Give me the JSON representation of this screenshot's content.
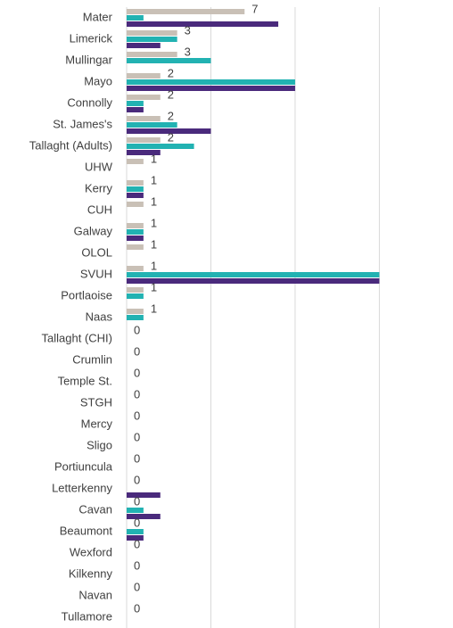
{
  "chart_data": {
    "type": "bar",
    "orientation": "horizontal",
    "categories": [
      "Mater",
      "Limerick",
      "Mullingar",
      "Mayo",
      "Connolly",
      "St. James's",
      "Tallaght (Adults)",
      "UHW",
      "Kerry",
      "CUH",
      "Galway",
      "OLOL",
      "SVUH",
      "Portlaoise",
      "Naas",
      "Tallaght (CHI)",
      "Crumlin",
      "Temple St.",
      "STGH",
      "Mercy",
      "Sligo",
      "Portiuncula",
      "Letterkenny",
      "Cavan",
      "Beaumont",
      "Wexford",
      "Kilkenny",
      "Navan",
      "Tullamore"
    ],
    "series": [
      {
        "color": "#c9c0b6",
        "show_labels": true,
        "values": [
          7,
          3,
          3,
          2,
          2,
          2,
          2,
          1,
          1,
          1,
          1,
          1,
          1,
          1,
          1,
          0,
          0,
          0,
          0,
          0,
          0,
          0,
          0,
          0,
          0,
          0,
          0,
          0,
          0
        ]
      },
      {
        "color": "#22b2b2",
        "show_labels": false,
        "values": [
          1,
          3,
          5,
          10,
          1,
          3,
          4,
          0,
          1,
          0,
          1,
          0,
          15,
          1,
          1,
          0,
          0,
          0,
          0,
          0,
          0,
          0,
          0,
          1,
          1,
          0,
          0,
          0,
          0
        ]
      },
      {
        "color": "#4a2a7c",
        "show_labels": false,
        "values": [
          9,
          2,
          0,
          10,
          1,
          5,
          2,
          0,
          1,
          0,
          1,
          0,
          15,
          0,
          0,
          0,
          0,
          0,
          0,
          0,
          0,
          0,
          2,
          2,
          1,
          0,
          0,
          0,
          0
        ]
      }
    ],
    "xlim": [
      0,
      19
    ],
    "xticks": [
      0,
      5,
      10,
      15
    ],
    "grid": true
  }
}
